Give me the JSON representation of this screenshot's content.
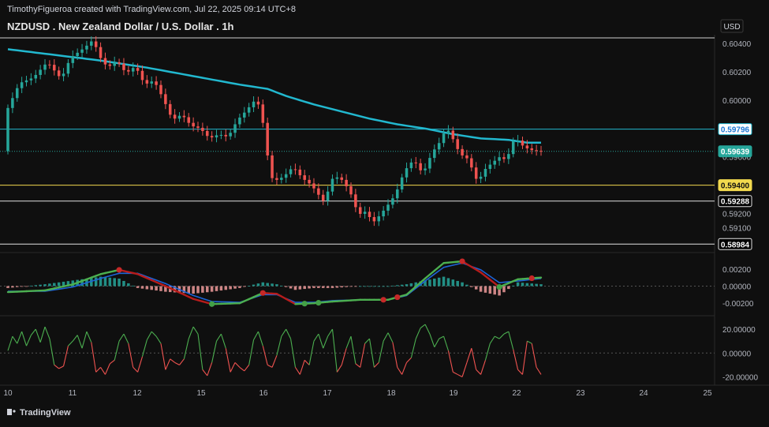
{
  "header": {
    "attribution": "TimothyFigueroa created with TradingView.com, Jul 22, 2025 09:14 UTC+8",
    "symbol_title": "NZDUSD . New Zealand Dollar / U.S. Dollar . 1h",
    "currency": "USD"
  },
  "footer": {
    "brand": "TradingView"
  },
  "colors": {
    "background": "#0f0f0f",
    "up_candle": "#26a69a",
    "down_candle": "#ef5350",
    "moving_average": "#22b8cf",
    "macd_fast": "#4caf50",
    "macd_signal": "#1e63d6",
    "macd_slow_red": "#b71c1c",
    "osc_up": "#4caf50",
    "osc_down": "#ef5350",
    "hline_blue": "#22b8cf",
    "hline_yellow": "#f2d94e",
    "hline_black": "#e0e0e0"
  },
  "chart_data": {
    "type": "candlestick",
    "title": "NZDUSD . New Zealand Dollar / U.S. Dollar . 1h",
    "x_tick_labels": [
      "10",
      "11",
      "12",
      "15",
      "16",
      "17",
      "18",
      "19",
      "22",
      "23",
      "24",
      "25"
    ],
    "price_axis": {
      "ylim": [
        0.5898,
        0.6044
      ],
      "ticks": [
        "0.60400",
        "0.60200",
        "0.60000",
        "0.59800",
        "0.59600",
        "0.59400",
        "0.59200",
        "0.59100"
      ]
    },
    "price_markers": [
      {
        "label": "0.59796",
        "value": 0.59796,
        "style": "blue"
      },
      {
        "label": "0.59639",
        "value": 0.59639,
        "style": "current"
      },
      {
        "label": "0.59400",
        "value": 0.594,
        "style": "yellow"
      },
      {
        "label": "0.59288",
        "value": 0.59288,
        "style": "black"
      },
      {
        "label": "0.58984",
        "value": 0.58984,
        "style": "black"
      }
    ],
    "top_line_value": 0.6044,
    "price_path": [
      [
        0,
        0.5991
      ],
      [
        3,
        0.6012
      ],
      [
        6,
        0.6016
      ],
      [
        9,
        0.6027
      ],
      [
        12,
        0.6015
      ],
      [
        14,
        0.603
      ],
      [
        17,
        0.6037
      ],
      [
        19,
        0.6043
      ],
      [
        20,
        0.6032
      ],
      [
        22,
        0.6023
      ],
      [
        24,
        0.6028
      ],
      [
        26,
        0.6019
      ],
      [
        28,
        0.6024
      ],
      [
        30,
        0.6011
      ],
      [
        32,
        0.6014
      ],
      [
        34,
        0.6001
      ],
      [
        36,
        0.5986
      ],
      [
        38,
        0.599
      ],
      [
        40,
        0.5982
      ],
      [
        42,
        0.598
      ],
      [
        44,
        0.5973
      ],
      [
        46,
        0.5976
      ],
      [
        48,
        0.5974
      ],
      [
        50,
        0.5986
      ],
      [
        52,
        0.5993
      ],
      [
        54,
        0.6001
      ],
      [
        55,
        0.5993
      ],
      [
        56,
        0.5975
      ],
      [
        57,
        0.5947
      ],
      [
        58,
        0.5943
      ],
      [
        60,
        0.5946
      ],
      [
        62,
        0.5953
      ],
      [
        64,
        0.5945
      ],
      [
        66,
        0.594
      ],
      [
        68,
        0.5931
      ],
      [
        69,
        0.5927
      ],
      [
        70,
        0.5944
      ],
      [
        72,
        0.5946
      ],
      [
        74,
        0.5937
      ],
      [
        75,
        0.593
      ],
      [
        76,
        0.5919
      ],
      [
        78,
        0.5922
      ],
      [
        79,
        0.5913
      ],
      [
        80,
        0.5916
      ],
      [
        82,
        0.5924
      ],
      [
        84,
        0.5933
      ],
      [
        85,
        0.5941
      ],
      [
        86,
        0.595
      ],
      [
        88,
        0.5958
      ],
      [
        90,
        0.5948
      ],
      [
        92,
        0.5963
      ],
      [
        94,
        0.5972
      ],
      [
        95,
        0.5981
      ],
      [
        96,
        0.5976
      ],
      [
        98,
        0.5962
      ],
      [
        100,
        0.5958
      ],
      [
        101,
        0.5947
      ],
      [
        102,
        0.5942
      ],
      [
        103,
        0.595
      ],
      [
        105,
        0.5956
      ],
      [
        107,
        0.5961
      ],
      [
        108,
        0.5956
      ],
      [
        109,
        0.5968
      ],
      [
        110,
        0.5974
      ],
      [
        111,
        0.5969
      ],
      [
        113,
        0.5965
      ],
      [
        115,
        0.5964
      ]
    ],
    "moving_average_path": [
      [
        0,
        0.6036
      ],
      [
        10,
        0.6032
      ],
      [
        20,
        0.6028
      ],
      [
        30,
        0.6023
      ],
      [
        40,
        0.6017
      ],
      [
        50,
        0.6011
      ],
      [
        56,
        0.6008
      ],
      [
        60,
        0.6003
      ],
      [
        66,
        0.5997
      ],
      [
        72,
        0.5992
      ],
      [
        78,
        0.5987
      ],
      [
        84,
        0.5983
      ],
      [
        90,
        0.598
      ],
      [
        96,
        0.5976
      ],
      [
        102,
        0.5973
      ],
      [
        108,
        0.5972
      ],
      [
        112,
        0.597
      ],
      [
        115,
        0.597
      ]
    ],
    "macd": {
      "axis_ticks": [
        "0.00200",
        "0.00000",
        "-0.00200"
      ],
      "ylim": [
        -0.003,
        0.003
      ],
      "fast": [
        [
          0,
          -0.0007
        ],
        [
          8,
          -0.0005
        ],
        [
          14,
          0.0002
        ],
        [
          20,
          0.0014
        ],
        [
          24,
          0.0019
        ],
        [
          28,
          0.0014
        ],
        [
          34,
          0.0
        ],
        [
          40,
          -0.0015
        ],
        [
          44,
          -0.0021
        ],
        [
          50,
          -0.002
        ],
        [
          55,
          -0.0008
        ],
        [
          58,
          -0.0009
        ],
        [
          62,
          -0.0021
        ],
        [
          66,
          -0.002
        ],
        [
          70,
          -0.0018
        ],
        [
          76,
          -0.0016
        ],
        [
          82,
          -0.0016
        ],
        [
          86,
          -0.001
        ],
        [
          90,
          0.0009
        ],
        [
          94,
          0.0027
        ],
        [
          98,
          0.0029
        ],
        [
          102,
          0.0016
        ],
        [
          106,
          -0.0001
        ],
        [
          110,
          0.0008
        ],
        [
          115,
          0.001
        ]
      ],
      "signal": [
        [
          0,
          -0.0006
        ],
        [
          8,
          -0.0006
        ],
        [
          14,
          -0.0001
        ],
        [
          20,
          0.0009
        ],
        [
          24,
          0.0015
        ],
        [
          28,
          0.0015
        ],
        [
          34,
          0.0003
        ],
        [
          40,
          -0.0011
        ],
        [
          44,
          -0.0018
        ],
        [
          50,
          -0.0019
        ],
        [
          55,
          -0.001
        ],
        [
          58,
          -0.001
        ],
        [
          62,
          -0.0019
        ],
        [
          66,
          -0.0019
        ],
        [
          70,
          -0.0017
        ],
        [
          76,
          -0.0016
        ],
        [
          82,
          -0.0016
        ],
        [
          86,
          -0.0011
        ],
        [
          90,
          0.0006
        ],
        [
          94,
          0.0022
        ],
        [
          98,
          0.0027
        ],
        [
          102,
          0.0019
        ],
        [
          106,
          0.0004
        ],
        [
          110,
          0.0006
        ],
        [
          115,
          0.0009
        ]
      ],
      "cross_points_red": [
        24,
        55,
        81,
        84,
        98,
        113
      ],
      "cross_points_green": [
        44,
        64,
        67,
        106
      ]
    },
    "oscillator": {
      "axis_ticks": [
        "20.00000",
        "0.00000",
        "-20.00000"
      ],
      "ylim": [
        -25,
        28
      ],
      "values": [
        2,
        14,
        8,
        18,
        6,
        15,
        20,
        9,
        22,
        12,
        -10,
        -13,
        -11,
        6,
        10,
        15,
        4,
        18,
        9,
        -16,
        -12,
        -18,
        -9,
        -6,
        10,
        16,
        8,
        -12,
        -16,
        -3,
        11,
        18,
        14,
        8,
        -14,
        -5,
        -8,
        -10,
        -5,
        12,
        22,
        16,
        -14,
        -19,
        -8,
        10,
        16,
        4,
        -16,
        -8,
        -12,
        -15,
        -10,
        11,
        18,
        6,
        -10,
        -12,
        -2,
        14,
        20,
        12,
        -12,
        -18,
        -6,
        -10,
        10,
        16,
        4,
        14,
        20,
        -16,
        -10,
        4,
        14,
        -9,
        -12,
        8,
        12,
        -12,
        -8,
        10,
        17,
        9,
        -12,
        -18,
        -8,
        -4,
        12,
        21,
        24,
        16,
        5,
        12,
        14,
        2,
        -16,
        -18,
        -20,
        -8,
        4,
        -14,
        -18,
        -6,
        8,
        14,
        12,
        16,
        18,
        3,
        -14,
        -18,
        10,
        8,
        -12,
        -18
      ]
    }
  }
}
